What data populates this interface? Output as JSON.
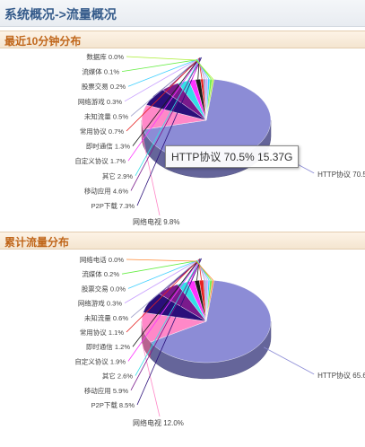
{
  "page": {
    "title": "系统概况->流量概况"
  },
  "colors": {
    "label_text": "#444444",
    "leader_line": "#888888"
  },
  "sections": [
    {
      "header": "最近10分钟分布",
      "tooltip": "HTTP协议 70.5% 15.37G",
      "chart_data": {
        "type": "pie",
        "slices": [
          {
            "name": "HTTP协议",
            "value": 70.5,
            "label": "HTTP协议 70.5%",
            "color": "#8c8cd6"
          },
          {
            "name": "网络电视",
            "value": 9.8,
            "label": "网络电视 9.8%",
            "color": "#ff88c8"
          },
          {
            "name": "P2P下载",
            "value": 7.3,
            "label": "P2P下载 7.3%",
            "color": "#2a0f7a"
          },
          {
            "name": "移动应用",
            "value": 4.6,
            "label": "移动应用 4.6%",
            "color": "#7a1a8c"
          },
          {
            "name": "其它",
            "value": 2.9,
            "label": "其它 2.9%",
            "color": "#33e0e6"
          },
          {
            "name": "自定义协议",
            "value": 1.7,
            "label": "自定义协议 1.7%",
            "color": "#ff33ff"
          },
          {
            "name": "即时通信",
            "value": 1.3,
            "label": "即时通信 1.3%",
            "color": "#1a1a1a"
          },
          {
            "name": "常用协议",
            "value": 0.7,
            "label": "常用协议 0.7%",
            "color": "#e62020"
          },
          {
            "name": "未知流量",
            "value": 0.5,
            "label": "未知流量 0.5%",
            "color": "#9c9cc8"
          },
          {
            "name": "网络游戏",
            "value": 0.3,
            "label": "网络游戏 0.3%",
            "color": "#c8a0ff"
          },
          {
            "name": "股票交易",
            "value": 0.2,
            "label": "股票交易 0.2%",
            "color": "#40d0ff"
          },
          {
            "name": "流媒体",
            "value": 0.1,
            "label": "流媒体 0.1%",
            "color": "#66ee44"
          },
          {
            "name": "数据库",
            "value": 0.0,
            "label": "数据库 0.0%",
            "color": "#aaee33"
          }
        ]
      }
    },
    {
      "header": "累计流量分布",
      "tooltip": "",
      "chart_data": {
        "type": "pie",
        "slices": [
          {
            "name": "HTTP协议",
            "value": 65.6,
            "label": "HTTP协议 65.6%",
            "color": "#8c8cd6"
          },
          {
            "name": "网络电视",
            "value": 12.0,
            "label": "网络电视 12.0%",
            "color": "#ff88c8"
          },
          {
            "name": "P2P下载",
            "value": 8.5,
            "label": "P2P下载 8.5%",
            "color": "#2a0f7a"
          },
          {
            "name": "移动应用",
            "value": 5.9,
            "label": "移动应用 5.9%",
            "color": "#7a1a8c"
          },
          {
            "name": "其它",
            "value": 2.6,
            "label": "其它 2.6%",
            "color": "#33e0e6"
          },
          {
            "name": "自定义协议",
            "value": 1.9,
            "label": "自定义协议 1.9%",
            "color": "#ff33ff"
          },
          {
            "name": "即时通信",
            "value": 1.2,
            "label": "即时通信 1.2%",
            "color": "#1a1a1a"
          },
          {
            "name": "常用协议",
            "value": 1.1,
            "label": "常用协议 1.1%",
            "color": "#e62020"
          },
          {
            "name": "未知流量",
            "value": 0.6,
            "label": "未知流量 0.6%",
            "color": "#9c9cc8"
          },
          {
            "name": "网络游戏",
            "value": 0.3,
            "label": "网络游戏 0.3%",
            "color": "#c8a0ff"
          },
          {
            "name": "股票交易",
            "value": 0.0,
            "label": "股票交易 0.0%",
            "color": "#40d0ff"
          },
          {
            "name": "流媒体",
            "value": 0.2,
            "label": "流媒体 0.2%",
            "color": "#66ee44"
          },
          {
            "name": "网络电话",
            "value": 0.0,
            "label": "网络电话 0.0%",
            "color": "#ff8833"
          }
        ]
      }
    }
  ]
}
